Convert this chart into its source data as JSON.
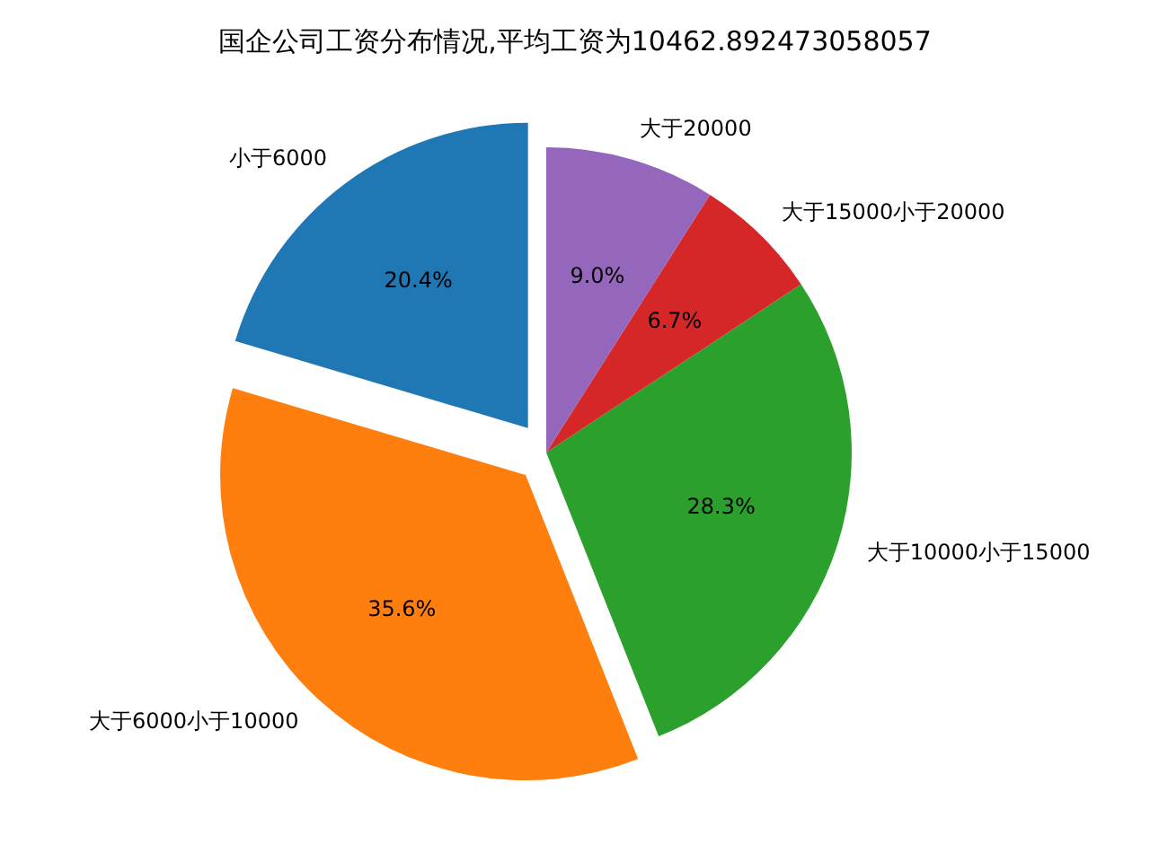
{
  "chart_data": {
    "type": "pie",
    "title": "国企公司工资分布情况,平均工资为10462.892473058057",
    "categories": [
      "小于6000",
      "大于6000小于10000",
      "大于10000小于15000",
      "大于15000小于20000",
      "大于20000"
    ],
    "values": [
      20.4,
      35.6,
      28.3,
      6.7,
      9.0
    ],
    "colors": [
      "#1f77b4",
      "#ff7f0e",
      "#2ca02c",
      "#d62728",
      "#9467bd"
    ],
    "value_labels": [
      "20.4%",
      "35.6%",
      "28.3%",
      "6.7%",
      "9.0%"
    ]
  }
}
